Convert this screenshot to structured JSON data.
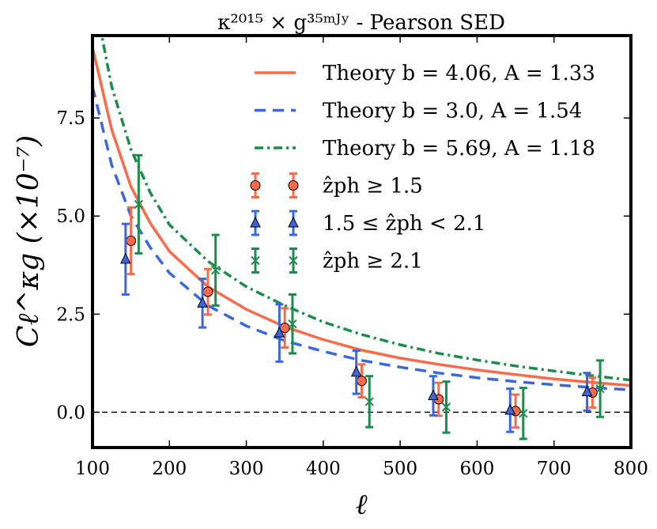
{
  "chart_data": {
    "type": "line",
    "title": "κ²⁰¹⁵ × g³⁵ᵐᴶʸ - Pearson SED",
    "xlabel": "ℓ",
    "ylabel": "Cℓ^κg (×10⁻⁷)",
    "xlim": [
      100,
      800
    ],
    "ylim": [
      -0.9,
      9.6
    ],
    "xticks": [
      100,
      200,
      300,
      400,
      500,
      600,
      700,
      800
    ],
    "yticks": [
      0.0,
      2.5,
      5.0,
      7.5
    ],
    "xtick_labels": [
      "100",
      "200",
      "300",
      "400",
      "500",
      "600",
      "700",
      "800"
    ],
    "ytick_labels": [
      "0.0",
      "2.5",
      "5.0",
      "7.5"
    ],
    "legend_position": "top-right",
    "grid": false,
    "zero_line": 0.0,
    "theory_x": [
      100,
      125,
      150,
      175,
      200,
      250,
      300,
      350,
      400,
      450,
      500,
      550,
      600,
      650,
      700,
      750,
      800
    ],
    "theory": [
      {
        "name": "Theory b = 4.06, A = 1.33",
        "color": "#fa6b4b",
        "style": "solid",
        "values": [
          9.3,
          7.2,
          5.75,
          4.82,
          4.1,
          3.2,
          2.62,
          2.18,
          1.85,
          1.58,
          1.38,
          1.22,
          1.08,
          0.96,
          0.85,
          0.76,
          0.68
        ]
      },
      {
        "name": "Theory b = 3.0, A = 1.54",
        "color": "#3a68dc",
        "style": "dashed",
        "values": [
          8.3,
          6.3,
          5.0,
          4.2,
          3.55,
          2.72,
          2.2,
          1.82,
          1.55,
          1.32,
          1.15,
          1.0,
          0.88,
          0.78,
          0.7,
          0.63,
          0.57
        ]
      },
      {
        "name": "Theory b = 5.69, A = 1.18",
        "color": "#1f8b4c",
        "style": "dashdot",
        "values": [
          10.8,
          8.3,
          6.7,
          5.6,
          4.78,
          3.85,
          3.2,
          2.72,
          2.3,
          1.98,
          1.72,
          1.5,
          1.33,
          1.18,
          1.05,
          0.93,
          0.82
        ]
      }
    ],
    "series": [
      {
        "name": "ẑph ≥ 1.5",
        "color": "#fa6b4b",
        "marker": "circle",
        "x": [
          150,
          250,
          350,
          450,
          550,
          650,
          750
        ],
        "y": [
          4.37,
          3.07,
          2.15,
          0.8,
          0.33,
          0.03,
          0.5
        ],
        "err": [
          0.85,
          0.58,
          0.5,
          0.42,
          0.42,
          0.42,
          0.38
        ]
      },
      {
        "name": "1.5 ≤ ẑph < 2.1",
        "color": "#3a68dc",
        "marker": "triangle",
        "x": [
          143,
          243,
          343,
          443,
          543,
          643,
          743
        ],
        "y": [
          3.9,
          2.78,
          2.02,
          1.02,
          0.42,
          0.05,
          0.52
        ],
        "err": [
          0.9,
          0.62,
          0.73,
          0.55,
          0.5,
          0.55,
          0.48
        ]
      },
      {
        "name": "ẑph ≥ 2.1",
        "color": "#1f8b4c",
        "marker": "x",
        "x": [
          160,
          260,
          360,
          460,
          560,
          660,
          760
        ],
        "y": [
          5.3,
          3.62,
          2.25,
          0.27,
          0.13,
          -0.03,
          0.6
        ],
        "err": [
          1.25,
          0.9,
          0.75,
          0.65,
          0.65,
          0.65,
          0.72
        ]
      }
    ]
  }
}
